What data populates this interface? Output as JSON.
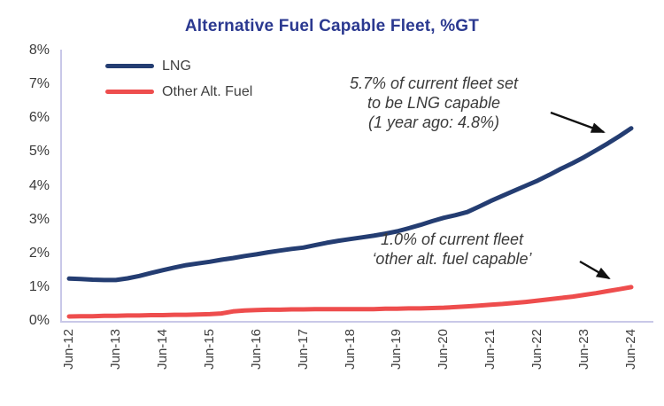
{
  "title": "Alternative Fuel Capable Fleet, %GT",
  "colors": {
    "title": "#2B3990",
    "lng_line": "#243D72",
    "other_line": "#EE4D4D",
    "axis": "#C9C8E8",
    "tick_text": "#3a3a3a",
    "annotation_text": "#3b3b3b",
    "arrow": "#111111"
  },
  "chart_data": {
    "type": "line",
    "title": "Alternative Fuel Capable Fleet, %GT",
    "grid": false,
    "legend_position": "top-left",
    "ylim": [
      0,
      8
    ],
    "y_ticks": [
      "0%",
      "1%",
      "2%",
      "3%",
      "4%",
      "5%",
      "6%",
      "7%",
      "8%"
    ],
    "y_tick_values": [
      0,
      1,
      2,
      3,
      4,
      5,
      6,
      7,
      8
    ],
    "x_ticks": [
      "Jun-12",
      "Jun-13",
      "Jun-14",
      "Jun-15",
      "Jun-16",
      "Jun-17",
      "Jun-18",
      "Jun-19",
      "Jun-20",
      "Jun-21",
      "Jun-22",
      "Jun-23",
      "Jun-24"
    ],
    "x_tick_values": [
      2012.5,
      2013.5,
      2014.5,
      2015.5,
      2016.5,
      2017.5,
      2018.5,
      2019.5,
      2020.5,
      2021.5,
      2022.5,
      2023.5,
      2024.5
    ],
    "x": [
      2012.5,
      2012.75,
      2013.0,
      2013.25,
      2013.5,
      2013.75,
      2014.0,
      2014.25,
      2014.5,
      2014.75,
      2015.0,
      2015.25,
      2015.5,
      2015.75,
      2016.0,
      2016.25,
      2016.5,
      2016.75,
      2017.0,
      2017.25,
      2017.5,
      2017.75,
      2018.0,
      2018.25,
      2018.5,
      2018.75,
      2019.0,
      2019.25,
      2019.5,
      2019.75,
      2020.0,
      2020.25,
      2020.5,
      2020.75,
      2021.0,
      2021.25,
      2021.5,
      2021.75,
      2022.0,
      2022.25,
      2022.5,
      2022.75,
      2023.0,
      2023.25,
      2023.5,
      2023.75,
      2024.0,
      2024.25,
      2024.5
    ],
    "series": [
      {
        "name": "LNG",
        "color": "#243D72",
        "values": [
          1.25,
          1.24,
          1.22,
          1.21,
          1.21,
          1.26,
          1.33,
          1.42,
          1.5,
          1.58,
          1.65,
          1.7,
          1.75,
          1.81,
          1.86,
          1.92,
          1.97,
          2.03,
          2.08,
          2.13,
          2.17,
          2.24,
          2.31,
          2.37,
          2.42,
          2.47,
          2.52,
          2.58,
          2.65,
          2.74,
          2.84,
          2.95,
          3.05,
          3.13,
          3.22,
          3.38,
          3.55,
          3.7,
          3.85,
          4.0,
          4.15,
          4.32,
          4.5,
          4.67,
          4.85,
          5.05,
          5.25,
          5.47,
          5.7
        ]
      },
      {
        "name": "Other Alt. Fuel",
        "color": "#EE4D4D",
        "values": [
          0.13,
          0.14,
          0.14,
          0.15,
          0.15,
          0.16,
          0.16,
          0.17,
          0.17,
          0.18,
          0.18,
          0.19,
          0.2,
          0.22,
          0.28,
          0.31,
          0.32,
          0.33,
          0.33,
          0.34,
          0.34,
          0.35,
          0.35,
          0.35,
          0.35,
          0.35,
          0.35,
          0.36,
          0.36,
          0.37,
          0.37,
          0.38,
          0.39,
          0.41,
          0.43,
          0.45,
          0.48,
          0.5,
          0.53,
          0.56,
          0.6,
          0.64,
          0.68,
          0.72,
          0.77,
          0.82,
          0.88,
          0.94,
          1.0
        ],
        "end_value_label": "1.0%"
      }
    ],
    "annotations": [
      {
        "lines": [
          "5.7% of current fleet set",
          "to be LNG capable",
          "(1 year ago: 4.8%)"
        ],
        "points_to": {
          "series": "LNG",
          "x": 2024.4,
          "y": 5.6
        }
      },
      {
        "lines": [
          "1.0% of current fleet",
          "‘other alt. fuel capable’"
        ],
        "points_to": {
          "series": "Other Alt. Fuel",
          "x": 2024.4,
          "y": 0.97
        }
      }
    ]
  }
}
